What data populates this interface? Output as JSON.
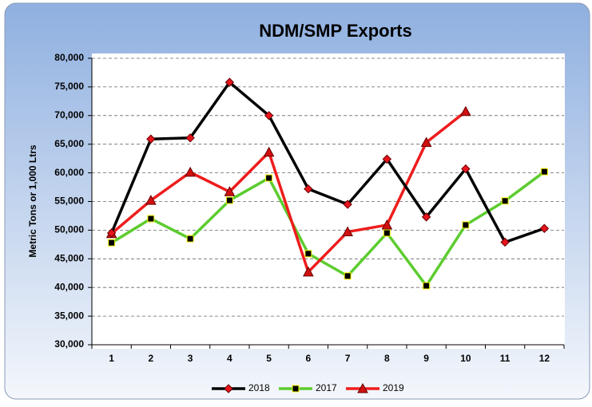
{
  "chart_data": {
    "type": "line",
    "title": "NDM/SMP  Exports",
    "y_label": "Metric Tons or 1,000 Ltrs",
    "categories": [
      "1",
      "2",
      "3",
      "4",
      "5",
      "6",
      "7",
      "8",
      "9",
      "10",
      "11",
      "12"
    ],
    "series": [
      {
        "name": "2018",
        "color": "#000000",
        "marker": "diamond",
        "marker_color": "#e8141c",
        "values": [
          49500,
          65900,
          66100,
          75800,
          70000,
          57200,
          54500,
          62400,
          52300,
          60700,
          47900,
          50300
        ]
      },
      {
        "name": "2017",
        "color": "#5ccc2e",
        "marker": "square",
        "marker_color": "#000000",
        "values": [
          47800,
          52000,
          48500,
          55200,
          59100,
          45900,
          42000,
          49500,
          40300,
          50900,
          55100,
          60200
        ]
      },
      {
        "name": "2019",
        "color": "#ee1c1c",
        "marker": "triangle",
        "marker_color": "#d01010",
        "values": [
          49400,
          55200,
          60100,
          56700,
          63600,
          42700,
          49700,
          50900,
          65300,
          70700,
          null,
          null
        ]
      }
    ],
    "ylim": [
      30000,
      80000
    ],
    "yticks": [
      {
        "value": 30000,
        "label": "30,000"
      },
      {
        "value": 35000,
        "label": "35,000"
      },
      {
        "value": 40000,
        "label": "40,000"
      },
      {
        "value": 45000,
        "label": "45,000"
      },
      {
        "value": 50000,
        "label": "50,000"
      },
      {
        "value": 55000,
        "label": "55,000"
      },
      {
        "value": 60000,
        "label": "60,000"
      },
      {
        "value": 65000,
        "label": "65,000"
      },
      {
        "value": 70000,
        "label": "70,000"
      },
      {
        "value": 75000,
        "label": "75,000"
      },
      {
        "value": 80000,
        "label": "80,000"
      }
    ],
    "grid": true,
    "legend": "bottom"
  }
}
